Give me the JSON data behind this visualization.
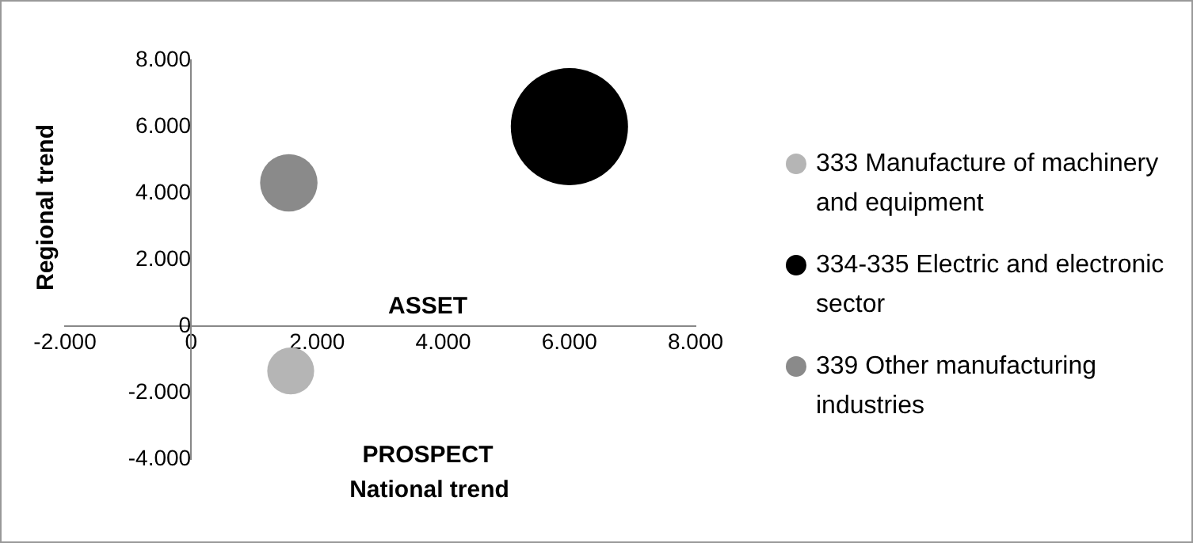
{
  "chart_data": {
    "type": "bubble",
    "xlabel": "National trend",
    "ylabel": "Regional trend",
    "xlim": [
      -2000,
      8000
    ],
    "xticks": [
      {
        "value": -2000,
        "label": "-2.000"
      },
      0,
      {
        "value": 2000,
        "label": "2.000"
      },
      {
        "value": 4000,
        "label": "4.000"
      },
      {
        "value": 6000,
        "label": "6.000"
      },
      {
        "value": 8000,
        "label": "8.000"
      }
    ],
    "ylim": [
      -4000,
      8000
    ],
    "yticks": [
      {
        "value": -4000,
        "label": "-4.000"
      },
      {
        "value": -2000,
        "label": "-2.000"
      },
      0,
      {
        "value": 2000,
        "label": "2.000"
      },
      {
        "value": 4000,
        "label": "4.000"
      },
      {
        "value": 6000,
        "label": "6.000"
      },
      {
        "value": 8000,
        "label": "8.000"
      }
    ],
    "series": [
      {
        "name": "333 Manufacture of machinery and equipment",
        "color": "#b5b5b5",
        "x": [
          1580
        ],
        "values": [
          -1350
        ],
        "sizes": [
          0.16
        ]
      },
      {
        "name": "334-335 Electric and electronic sector",
        "color": "#000000",
        "x": [
          6000
        ],
        "values": [
          6000
        ],
        "sizes": [
          1
        ]
      },
      {
        "name": "339 Other manufacturing industries",
        "color": "#8a8a8a",
        "x": [
          1550
        ],
        "values": [
          4310
        ],
        "sizes": [
          0.24
        ]
      }
    ],
    "annotations": [
      "ASSET",
      "PROSPECT"
    ],
    "grid": false,
    "legend": "right"
  }
}
